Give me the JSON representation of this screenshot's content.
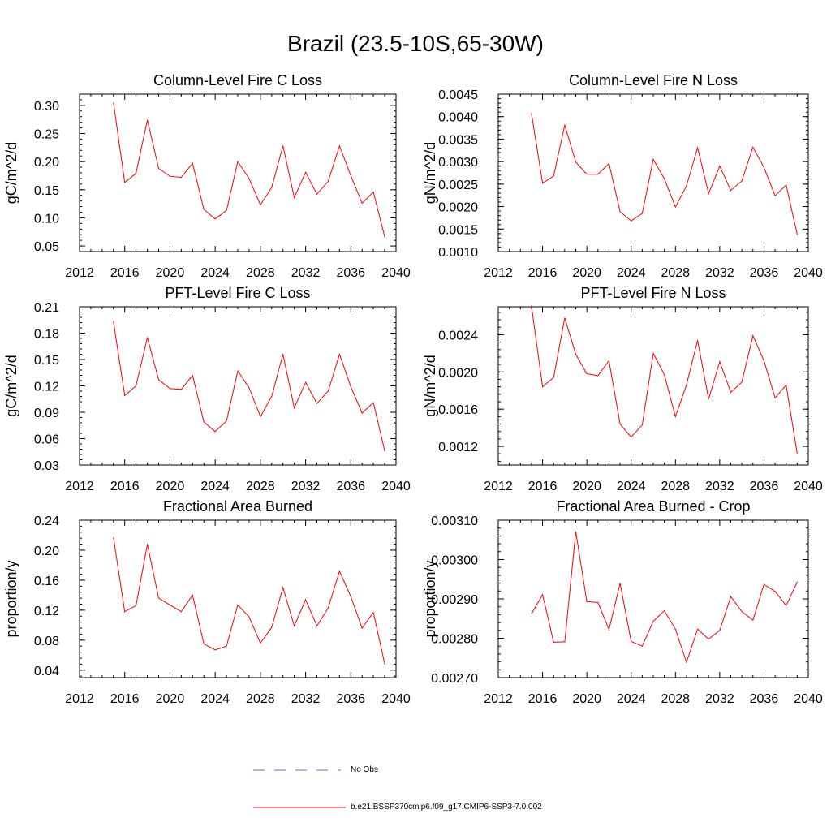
{
  "title": "Brazil (23.5-10S,65-30W)",
  "colors": {
    "model_line": "#ff0000",
    "obs_line": "#6666cc",
    "axis": "#000000"
  },
  "legend": {
    "obs_label": "No Obs",
    "model_label": "b.e21.BSSP370cmip6.f09_g17.CMIP6-SSP3-7.0.002"
  },
  "chart_data": [
    {
      "type": "line",
      "title": "Column-Level Fire C Loss",
      "ylabel": "gC/m^2/d",
      "xlim": [
        2012,
        2040
      ],
      "ylim": [
        0.04,
        0.32
      ],
      "xticks": [
        2012,
        2016,
        2020,
        2024,
        2028,
        2032,
        2036,
        2040
      ],
      "yticks": [
        0.05,
        0.1,
        0.15,
        0.2,
        0.25,
        0.3
      ],
      "ytick_labels": [
        "0.05",
        "0.10",
        "0.15",
        "0.20",
        "0.25",
        "0.30"
      ],
      "x": [
        2015,
        2016,
        2017,
        2018,
        2019,
        2020,
        2021,
        2022,
        2023,
        2024,
        2025,
        2026,
        2027,
        2028,
        2029,
        2030,
        2031,
        2032,
        2033,
        2034,
        2035,
        2036,
        2037,
        2038,
        2039
      ],
      "series": [
        {
          "name": "b.e21.BSSP370cmip6.f09_g17.CMIP6-SSP3-7.0.002",
          "values": [
            0.305,
            0.163,
            0.179,
            0.274,
            0.188,
            0.174,
            0.172,
            0.197,
            0.115,
            0.098,
            0.113,
            0.2,
            0.17,
            0.123,
            0.154,
            0.228,
            0.136,
            0.181,
            0.142,
            0.165,
            0.228,
            0.175,
            0.126,
            0.146,
            0.066
          ]
        }
      ]
    },
    {
      "type": "line",
      "title": "Column-Level Fire N Loss",
      "ylabel": "gN/m^2/d",
      "xlim": [
        2012,
        2040
      ],
      "ylim": [
        0.001,
        0.0045
      ],
      "xticks": [
        2012,
        2016,
        2020,
        2024,
        2028,
        2032,
        2036,
        2040
      ],
      "yticks": [
        0.001,
        0.0015,
        0.002,
        0.0025,
        0.003,
        0.0035,
        0.004,
        0.0045
      ],
      "ytick_labels": [
        "0.0010",
        "0.0015",
        "0.0020",
        "0.0025",
        "0.0030",
        "0.0035",
        "0.0040",
        "0.0045"
      ],
      "x": [
        2015,
        2016,
        2017,
        2018,
        2019,
        2020,
        2021,
        2022,
        2023,
        2024,
        2025,
        2026,
        2027,
        2028,
        2029,
        2030,
        2031,
        2032,
        2033,
        2034,
        2035,
        2036,
        2037,
        2038,
        2039
      ],
      "series": [
        {
          "name": "b.e21.BSSP370cmip6.f09_g17.CMIP6-SSP3-7.0.002",
          "values": [
            0.00407,
            0.00252,
            0.00268,
            0.00381,
            0.00299,
            0.00272,
            0.00272,
            0.00296,
            0.00189,
            0.00168,
            0.00185,
            0.00305,
            0.00262,
            0.00199,
            0.00246,
            0.00331,
            0.00229,
            0.0029,
            0.00236,
            0.00257,
            0.00332,
            0.00287,
            0.00224,
            0.00248,
            0.00138
          ]
        }
      ]
    },
    {
      "type": "line",
      "title": "PFT-Level Fire C Loss",
      "ylabel": "gC/m^2/d",
      "xlim": [
        2012,
        2040
      ],
      "ylim": [
        0.03,
        0.21
      ],
      "xticks": [
        2012,
        2016,
        2020,
        2024,
        2028,
        2032,
        2036,
        2040
      ],
      "yticks": [
        0.03,
        0.06,
        0.09,
        0.12,
        0.15,
        0.18,
        0.21
      ],
      "ytick_labels": [
        "0.03",
        "0.06",
        "0.09",
        "0.12",
        "0.15",
        "0.18",
        "0.21"
      ],
      "x": [
        2015,
        2016,
        2017,
        2018,
        2019,
        2020,
        2021,
        2022,
        2023,
        2024,
        2025,
        2026,
        2027,
        2028,
        2029,
        2030,
        2031,
        2032,
        2033,
        2034,
        2035,
        2036,
        2037,
        2038,
        2039
      ],
      "series": [
        {
          "name": "b.e21.BSSP370cmip6.f09_g17.CMIP6-SSP3-7.0.002",
          "values": [
            0.193,
            0.109,
            0.12,
            0.175,
            0.127,
            0.117,
            0.116,
            0.132,
            0.079,
            0.068,
            0.08,
            0.137,
            0.118,
            0.085,
            0.108,
            0.156,
            0.095,
            0.124,
            0.1,
            0.114,
            0.156,
            0.119,
            0.089,
            0.101,
            0.046
          ]
        }
      ]
    },
    {
      "type": "line",
      "title": "PFT-Level Fire N Loss",
      "ylabel": "gN/m^2/d",
      "xlim": [
        2012,
        2040
      ],
      "ylim": [
        0.001,
        0.0027
      ],
      "xticks": [
        2012,
        2016,
        2020,
        2024,
        2028,
        2032,
        2036,
        2040
      ],
      "yticks": [
        0.0012,
        0.0016,
        0.002,
        0.0024
      ],
      "ytick_labels": [
        "0.0012",
        "0.0016",
        "0.0020",
        "0.0024"
      ],
      "x": [
        2015,
        2016,
        2017,
        2018,
        2019,
        2020,
        2021,
        2022,
        2023,
        2024,
        2025,
        2026,
        2027,
        2028,
        2029,
        2030,
        2031,
        2032,
        2033,
        2034,
        2035,
        2036,
        2037,
        2038,
        2039
      ],
      "series": [
        {
          "name": "b.e21.BSSP370cmip6.f09_g17.CMIP6-SSP3-7.0.002",
          "values": [
            0.00271,
            0.00184,
            0.00194,
            0.00258,
            0.00219,
            0.00198,
            0.00196,
            0.00212,
            0.00144,
            0.0013,
            0.00143,
            0.0022,
            0.00197,
            0.00152,
            0.00186,
            0.00234,
            0.00171,
            0.00211,
            0.00178,
            0.00189,
            0.00239,
            0.00212,
            0.00172,
            0.00186,
            0.00112
          ]
        }
      ]
    },
    {
      "type": "line",
      "title": "Fractional Area Burned",
      "ylabel": "proportion/y",
      "xlim": [
        2012,
        2040
      ],
      "ylim": [
        0.03,
        0.24
      ],
      "xticks": [
        2012,
        2016,
        2020,
        2024,
        2028,
        2032,
        2036,
        2040
      ],
      "yticks": [
        0.04,
        0.08,
        0.12,
        0.16,
        0.2,
        0.24
      ],
      "ytick_labels": [
        "0.04",
        "0.08",
        "0.12",
        "0.16",
        "0.20",
        "0.24"
      ],
      "x": [
        2015,
        2016,
        2017,
        2018,
        2019,
        2020,
        2021,
        2022,
        2023,
        2024,
        2025,
        2026,
        2027,
        2028,
        2029,
        2030,
        2031,
        2032,
        2033,
        2034,
        2035,
        2036,
        2037,
        2038,
        2039
      ],
      "series": [
        {
          "name": "b.e21.BSSP370cmip6.f09_g17.CMIP6-SSP3-7.0.002",
          "values": [
            0.217,
            0.118,
            0.126,
            0.208,
            0.136,
            0.127,
            0.118,
            0.14,
            0.075,
            0.067,
            0.072,
            0.127,
            0.111,
            0.076,
            0.097,
            0.15,
            0.099,
            0.134,
            0.099,
            0.123,
            0.172,
            0.138,
            0.096,
            0.117,
            0.048
          ]
        }
      ]
    },
    {
      "type": "line",
      "title": "Fractional Area Burned - Crop",
      "ylabel": "proportion/y",
      "xlim": [
        2012,
        2040
      ],
      "ylim": [
        0.0027,
        0.0031
      ],
      "xticks": [
        2012,
        2016,
        2020,
        2024,
        2028,
        2032,
        2036,
        2040
      ],
      "yticks": [
        0.0027,
        0.0028,
        0.0029,
        0.003,
        0.0031
      ],
      "ytick_labels": [
        "0.00270",
        "0.00280",
        "0.00290",
        "0.00300",
        "0.00310"
      ],
      "x": [
        2015,
        2016,
        2017,
        2018,
        2019,
        2020,
        2021,
        2022,
        2023,
        2024,
        2025,
        2026,
        2027,
        2028,
        2029,
        2030,
        2031,
        2032,
        2033,
        2034,
        2035,
        2036,
        2037,
        2038,
        2039
      ],
      "series": [
        {
          "name": "b.e21.BSSP370cmip6.f09_g17.CMIP6-SSP3-7.0.002",
          "values": [
            0.002862,
            0.002911,
            0.00279,
            0.002791,
            0.003071,
            0.002893,
            0.002891,
            0.002822,
            0.00294,
            0.002792,
            0.00278,
            0.002843,
            0.00287,
            0.002823,
            0.002739,
            0.002823,
            0.002798,
            0.00282,
            0.002906,
            0.002868,
            0.002846,
            0.002937,
            0.002919,
            0.002883,
            0.002943
          ]
        }
      ]
    }
  ]
}
